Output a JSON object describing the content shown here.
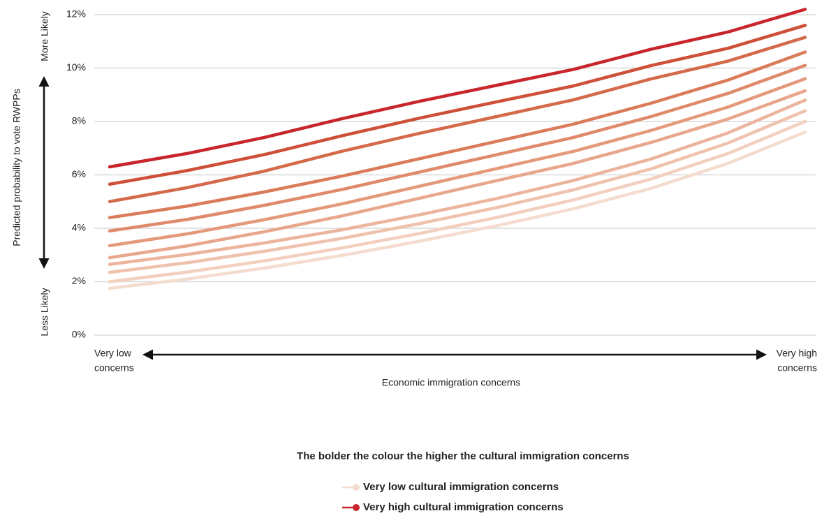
{
  "chart_data": {
    "type": "line",
    "y_axis_label": "Predicted probability to vote RWPPs",
    "y_top_label": "More Likely",
    "y_bottom_label": "Less Likely",
    "x_low_label": [
      "Very low",
      "concerns"
    ],
    "x_high_label": [
      "Very high",
      "concerns"
    ],
    "x_axis_label": "Economic immigration concerns",
    "legend_title": "The bolder the colour the higher the cultural immigration concerns",
    "categories": [
      null,
      null,
      null,
      null,
      null,
      null,
      null,
      null,
      null,
      null
    ],
    "ylim": [
      0,
      12.2
    ],
    "yticks": [
      {
        "value": 0,
        "label": "0%"
      },
      {
        "value": 2,
        "label": "2%"
      },
      {
        "value": 4,
        "label": "4%"
      },
      {
        "value": 6,
        "label": "6%"
      },
      {
        "value": 8,
        "label": "8%"
      },
      {
        "value": 10,
        "label": "10%"
      },
      {
        "value": 12,
        "label": "12%"
      }
    ],
    "grid": true,
    "series": [
      {
        "name": "Very low cultural immigration concerns",
        "color": "#f4dccf",
        "values": [
          1.75,
          2.1,
          2.51,
          2.98,
          3.51,
          4.09,
          4.73,
          5.49,
          6.43,
          7.6
        ]
      },
      {
        "color": "#f2cfbf",
        "values": [
          2.0,
          2.36,
          2.78,
          3.26,
          3.8,
          4.4,
          5.06,
          5.84,
          6.8,
          8.0
        ]
      },
      {
        "color": "#efc2ae",
        "values": [
          2.35,
          2.71,
          3.14,
          3.62,
          4.17,
          4.77,
          5.44,
          6.22,
          7.19,
          8.4
        ]
      },
      {
        "color": "#ecb49d",
        "values": [
          2.65,
          3.02,
          3.45,
          3.94,
          4.5,
          5.11,
          5.79,
          6.59,
          7.57,
          8.8
        ]
      },
      {
        "color": "#e8a78c",
        "values": [
          2.9,
          3.34,
          3.87,
          4.46,
          5.12,
          5.78,
          6.43,
          7.21,
          8.09,
          9.15
        ]
      },
      {
        "color": "#e4997b",
        "values": [
          3.35,
          3.79,
          4.32,
          4.91,
          5.57,
          6.23,
          6.88,
          7.66,
          8.54,
          9.6
        ]
      },
      {
        "color": "#df8a6a",
        "values": [
          3.9,
          4.33,
          4.86,
          5.45,
          6.1,
          6.75,
          7.4,
          8.18,
          9.05,
          10.1
        ]
      },
      {
        "color": "#da7b5a",
        "values": [
          4.4,
          4.83,
          5.36,
          5.95,
          6.6,
          7.25,
          7.9,
          8.68,
          9.55,
          10.6
        ]
      },
      {
        "color": "#d46a4a",
        "values": [
          5.0,
          5.52,
          6.14,
          6.88,
          7.55,
          8.18,
          8.81,
          9.59,
          10.26,
          11.15
        ]
      },
      {
        "color": "#ce5039",
        "values": [
          5.65,
          6.16,
          6.76,
          7.46,
          8.12,
          8.73,
          9.33,
          10.09,
          10.74,
          11.6
        ]
      },
      {
        "name": "Very high cultural immigration concerns",
        "color": "#c8262c",
        "values": [
          6.3,
          6.8,
          7.4,
          8.1,
          8.75,
          9.35,
          9.95,
          10.7,
          11.35,
          12.2
        ]
      }
    ]
  }
}
